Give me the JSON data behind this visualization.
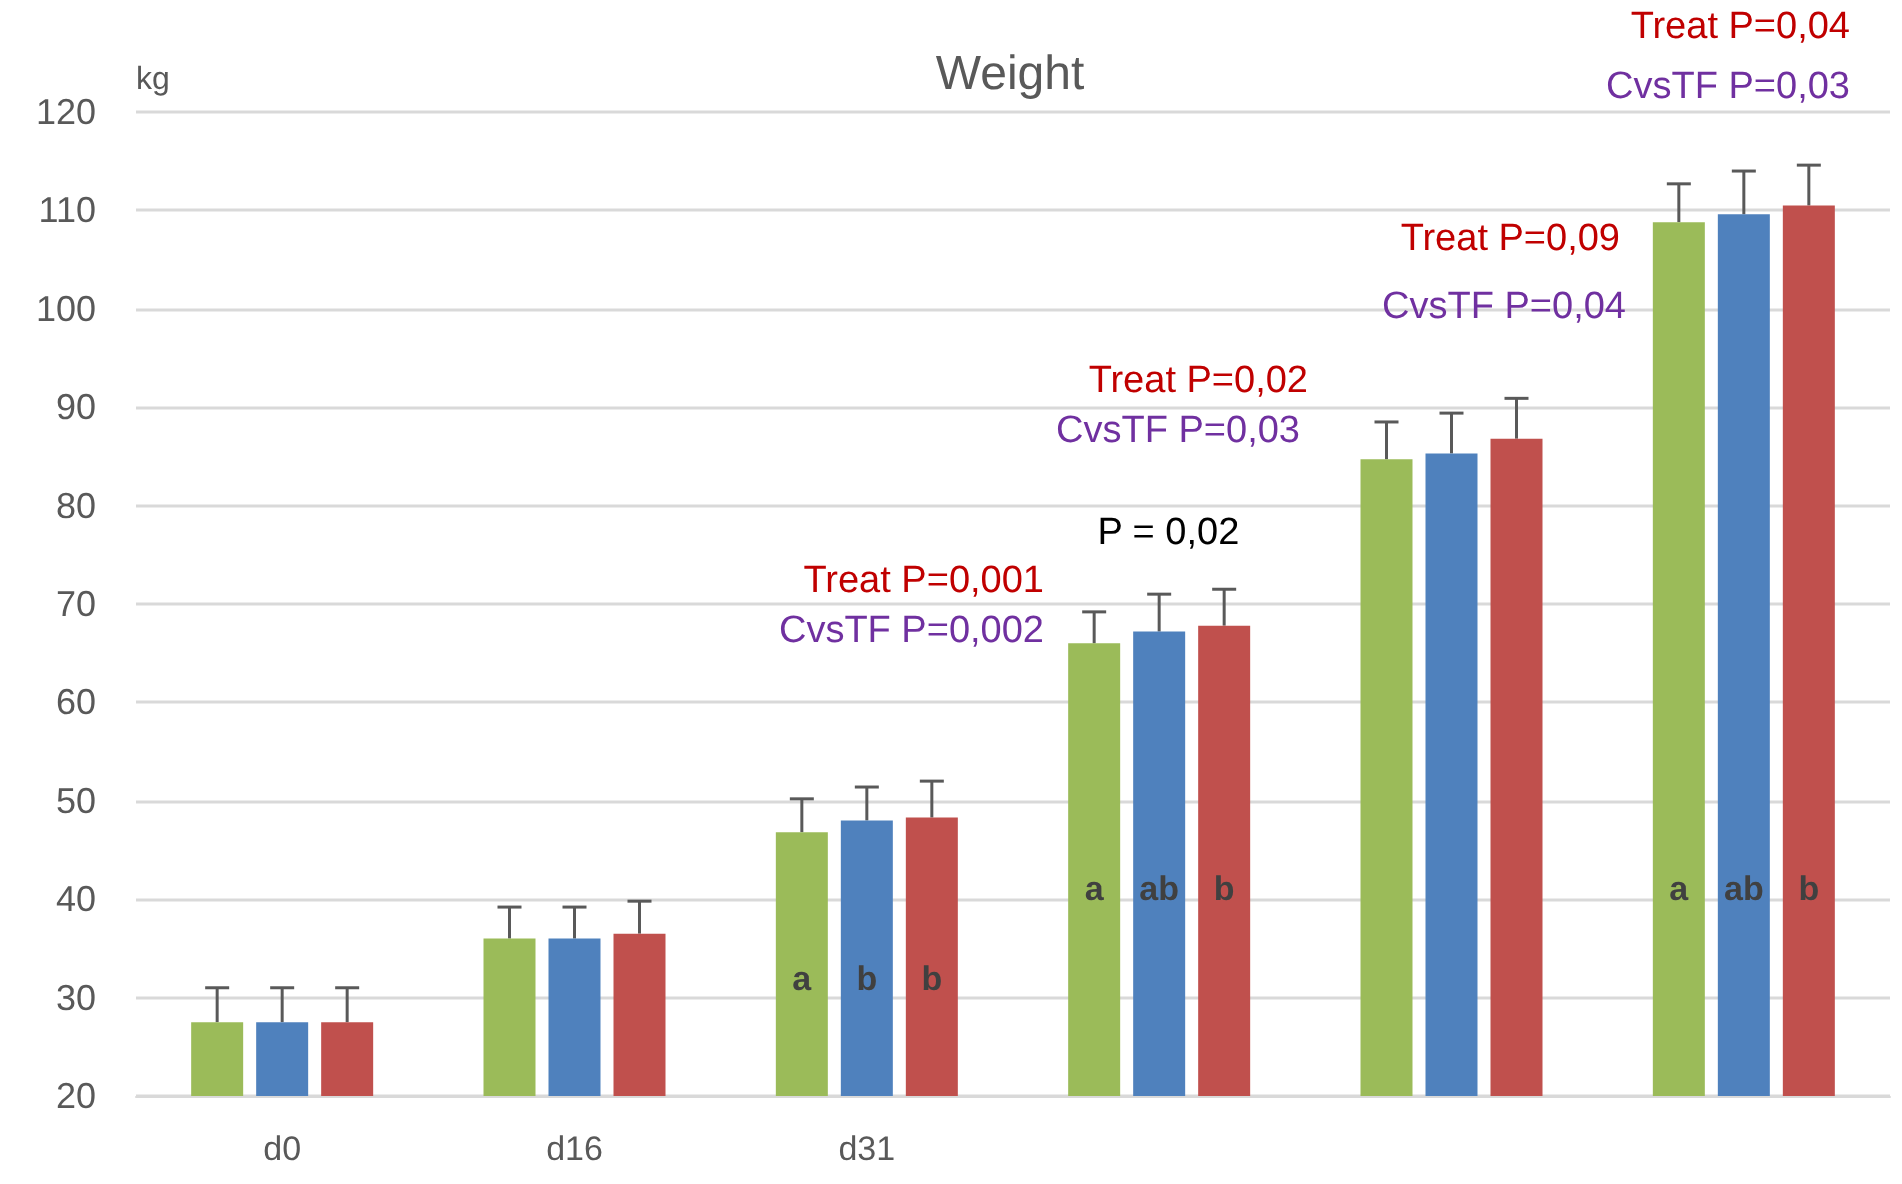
{
  "chart_data": {
    "type": "bar",
    "title": "Weight",
    "ylabel": "kg",
    "categories": [
      "d0",
      "d16",
      "d31",
      null,
      null,
      null
    ],
    "series": [
      {
        "color": "#9bbb59",
        "values": [
          27.5,
          36,
          46.8,
          66,
          84.7,
          108.8
        ],
        "errors": [
          [
            27.5,
            31
          ],
          [
            36,
            39.2
          ],
          [
            46.8,
            50.2
          ],
          [
            66,
            69.2
          ],
          [
            84.7,
            88.5
          ],
          [
            108.8,
            112.7
          ]
        ],
        "value_labels": [
          null,
          null,
          "a",
          "a",
          null,
          "a"
        ]
      },
      {
        "color": "#4f81bd",
        "values": [
          27.5,
          36,
          48,
          67.2,
          85.3,
          109.6
        ],
        "errors": [
          [
            27.5,
            31
          ],
          [
            36,
            39.2
          ],
          [
            48,
            51.4
          ],
          [
            67.2,
            71
          ],
          [
            85.3,
            89.4
          ],
          [
            109.6,
            114
          ]
        ],
        "value_labels": [
          null,
          null,
          "b",
          "ab",
          null,
          "ab"
        ]
      },
      {
        "color": "#c0504d",
        "values": [
          27.5,
          36.5,
          48.3,
          67.8,
          86.8,
          110.5
        ],
        "errors": [
          [
            27.5,
            31
          ],
          [
            36.5,
            39.8
          ],
          [
            48.3,
            52
          ],
          [
            67.8,
            71.5
          ],
          [
            86.8,
            90.9
          ],
          [
            110.5,
            114.6
          ]
        ],
        "value_labels": [
          null,
          null,
          "b",
          "b",
          null,
          "b"
        ]
      }
    ],
    "annotations": [
      "Treat P=0,001",
      "CvsTF P=0,002",
      "P = 0,02",
      "Treat P=0,02",
      "CvsTF P=0,03",
      "Treat P=0,09",
      "CvsTF P=0,04",
      "Treat P=0,04",
      "CvsTF P=0,03"
    ],
    "ylim": [
      20,
      120
    ],
    "yticks": [
      20,
      30,
      40,
      50,
      60,
      70,
      80,
      90,
      100,
      110,
      120
    ],
    "grid": "y"
  }
}
